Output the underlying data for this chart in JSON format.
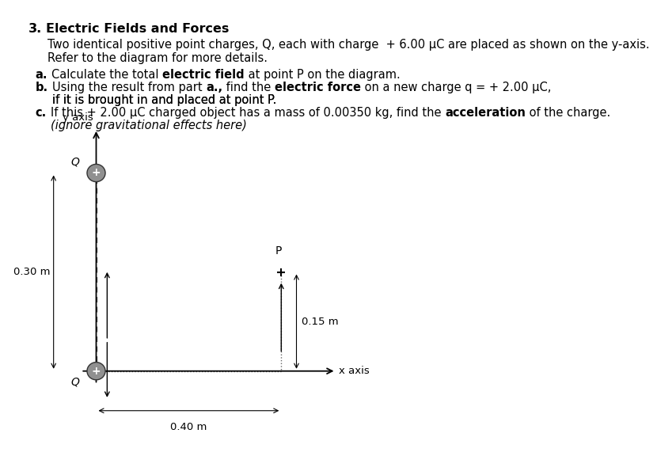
{
  "bg_color": "#ffffff",
  "text_color": "#000000",
  "title_num": "3.",
  "title_text": "  Electric Fields and Forces",
  "body_indent": 0.055,
  "line1": "Two identical positive point charges, Q, each with charge  + 6.00 μC are placed as shown on the y-axis.",
  "line2": "Refer to the diagram for more details.",
  "part_a_label": "a.",
  "part_a_pre": "Calculate the total ",
  "part_a_bold": "electric field",
  "part_a_post": " at point P on the diagram.",
  "part_b_label": "b.",
  "part_b_pre": "Using the result from part ",
  "part_b_bold1": "a.,",
  "part_b_mid": " find the ",
  "part_b_bold2": "electric force",
  "part_b_post": " on a new charge q = + 2.00 μC,",
  "part_b_line2": "if it is brought in and placed at point P.",
  "part_c_label": "c.",
  "part_c_pre": "If this + 2.00 μC charged object has a mass of 0.00350 kg, find the ",
  "part_c_bold": "acceleration",
  "part_c_post": " of the charge.",
  "part_c_line2": "(ignore gravitational effects here)",
  "diagram": {
    "yaxis_label": "y axis",
    "xaxis_label": "x axis",
    "charge_label": "Q",
    "point_label": "P",
    "dim_left": "0.30 m",
    "dim_bottom": "0.40 m",
    "dim_right": "0.15 m"
  }
}
